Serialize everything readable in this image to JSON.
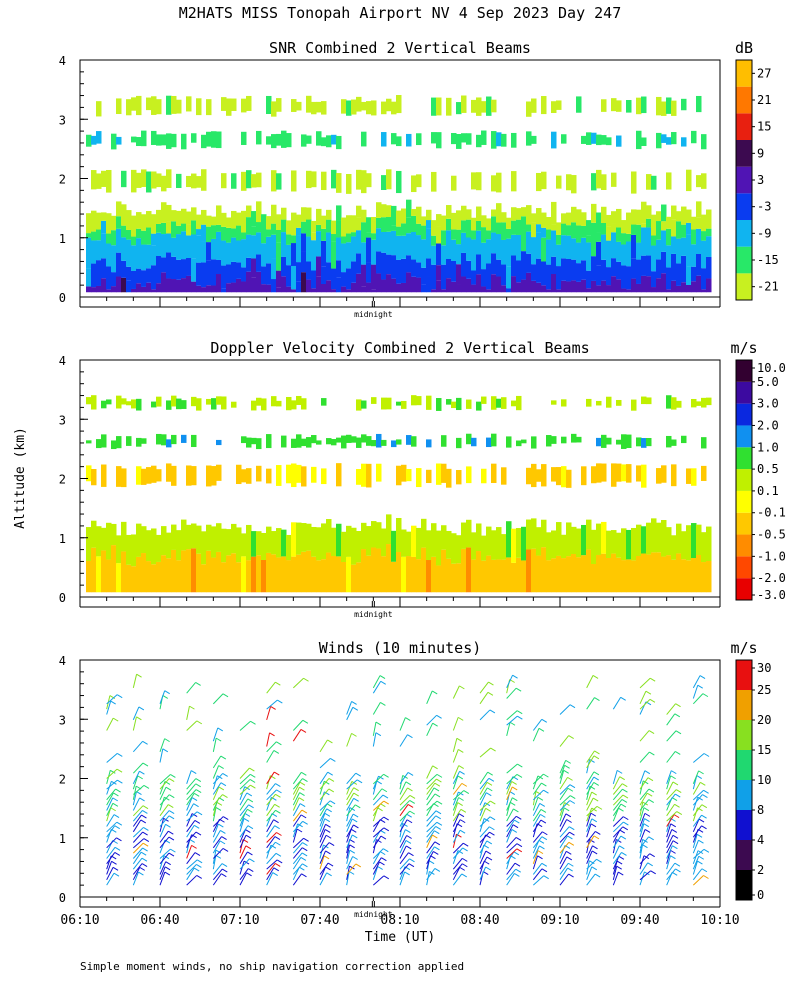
{
  "figure_title": "M2HATS MISS Tonopah Airport NV   4 Sep 2023 Day 247",
  "y_axis_label": "Altitude (km)",
  "x_axis_label": "Time (UT)",
  "midnight_label": "midnight",
  "footnote": "Simple moment winds, no ship navigation correction applied",
  "colors": {
    "snr_scale": [
      "#c8f020",
      "#28e868",
      "#10b4f0",
      "#0a3cf0",
      "#5014b4",
      "#3c0a50",
      "#e82010",
      "#ff7800",
      "#ffbe00"
    ],
    "vel_scale": [
      "#e80000",
      "#ff4800",
      "#ff8c00",
      "#ffc800",
      "#ffff00",
      "#c0f000",
      "#30e030",
      "#1090f0",
      "#0a28e0",
      "#3c0aa0",
      "#320030"
    ],
    "wind_scale": [
      "#000000",
      "#3c0a50",
      "#1010d0",
      "#10a0e8",
      "#20d870",
      "#88e020",
      "#f0a000",
      "#e81010"
    ]
  },
  "chart_data": [
    {
      "type": "heatmap",
      "title": "SNR Combined 2 Vertical Beams",
      "units": "dB",
      "ylim": [
        0,
        4
      ],
      "yticks": [
        "0",
        "1",
        "2",
        "3",
        "4"
      ],
      "colorbar": [
        "-21",
        "-15",
        "-9",
        "-3",
        "3",
        "9",
        "15",
        "21",
        "27"
      ],
      "layers_km": [
        {
          "top": 0.25,
          "level": "3"
        },
        {
          "top": 0.6,
          "level": "-3"
        },
        {
          "top": 1.0,
          "level": "-9"
        },
        {
          "top": 1.2,
          "level": "-15"
        },
        {
          "top": 1.45,
          "level": "-21"
        }
      ],
      "bands_km": [
        {
          "from": 1.8,
          "to": 2.1,
          "level": "-21"
        },
        {
          "from": 2.55,
          "to": 2.75,
          "level": "-15"
        },
        {
          "from": 3.1,
          "to": 3.35,
          "level": "-21"
        }
      ]
    },
    {
      "type": "heatmap",
      "title": "Doppler Velocity Combined 2 Vertical Beams",
      "units": "m/s",
      "ylim": [
        0,
        4
      ],
      "yticks": [
        "0",
        "1",
        "2",
        "3",
        "4"
      ],
      "colorbar": [
        "-3.0",
        "-2.0",
        "-1.0",
        "-0.5",
        "-0.1",
        "0.1",
        "0.5",
        "1.0",
        "2.0",
        "3.0",
        "5.0",
        "10.0"
      ],
      "layers_km": [
        {
          "top": 0.7,
          "level": "-0.5"
        },
        {
          "top": 1.2,
          "level": "0.1"
        }
      ],
      "bands_km": [
        {
          "from": 1.9,
          "to": 2.2,
          "level": "-0.5"
        },
        {
          "from": 2.55,
          "to": 2.7,
          "level": "0.5"
        },
        {
          "from": 3.2,
          "to": 3.35,
          "level": "0.1"
        }
      ]
    },
    {
      "type": "scatter",
      "marker": "wind barb",
      "title": "Winds (10 minutes)",
      "units": "m/s",
      "ylim": [
        0,
        4
      ],
      "yticks": [
        "0",
        "1",
        "2",
        "3",
        "4"
      ],
      "colorbar": [
        "0",
        "2",
        "4",
        "8",
        "10",
        "15",
        "20",
        "25",
        "30"
      ],
      "profile_spacing_min": 10,
      "barb_alt_range_km": [
        0.2,
        3.6
      ]
    }
  ],
  "x_axis": {
    "range_min": [
      0,
      240
    ],
    "tick_labels": [
      "06:10",
      "06:40",
      "07:10",
      "07:40",
      "08:10",
      "08:40",
      "09:10",
      "09:40",
      "10:10"
    ],
    "tick_values_min": [
      0,
      30,
      60,
      90,
      120,
      150,
      180,
      210,
      240
    ],
    "minor_tick_step_min": 10,
    "midnight_min": 110
  }
}
